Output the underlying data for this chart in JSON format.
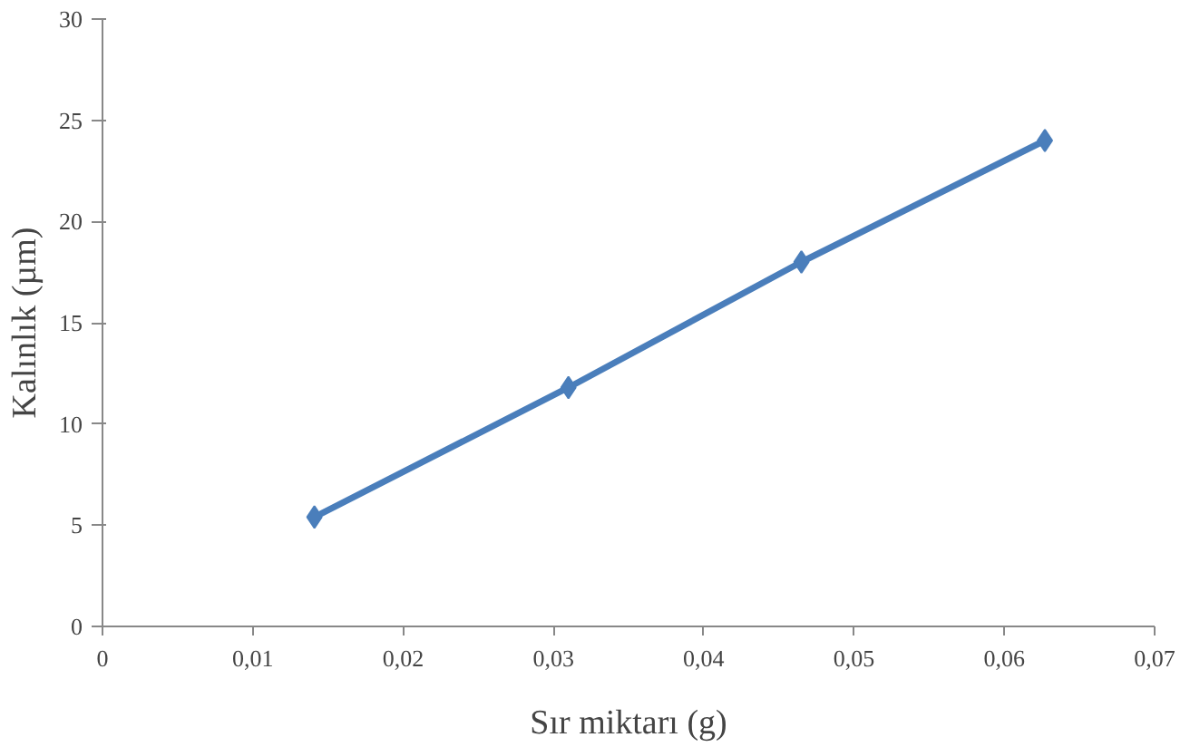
{
  "chart_data": {
    "type": "line",
    "xlabel": "Sır miktarı (g)",
    "ylabel": "Kalınlık (µm)",
    "x": [
      0.0141,
      0.031,
      0.0465,
      0.0627
    ],
    "series": [
      {
        "color": "#4a7ebb",
        "values": [
          5.4,
          11.8,
          18.0,
          24.0
        ]
      }
    ],
    "xlim": [
      0,
      0.07
    ],
    "ylim": [
      0,
      30
    ],
    "xticks": [
      {
        "value": 0,
        "label": "0"
      },
      {
        "value": 0.01,
        "label": "0,01"
      },
      {
        "value": 0.02,
        "label": "0,02"
      },
      {
        "value": 0.03,
        "label": "0,03"
      },
      {
        "value": 0.04,
        "label": "0,04"
      },
      {
        "value": 0.05,
        "label": "0,05"
      },
      {
        "value": 0.06,
        "label": "0,06"
      },
      {
        "value": 0.07,
        "label": "0,07"
      }
    ],
    "yticks": [
      0,
      5,
      10,
      15,
      20,
      25,
      30
    ],
    "marker": "diamond",
    "line_style": "solid"
  }
}
